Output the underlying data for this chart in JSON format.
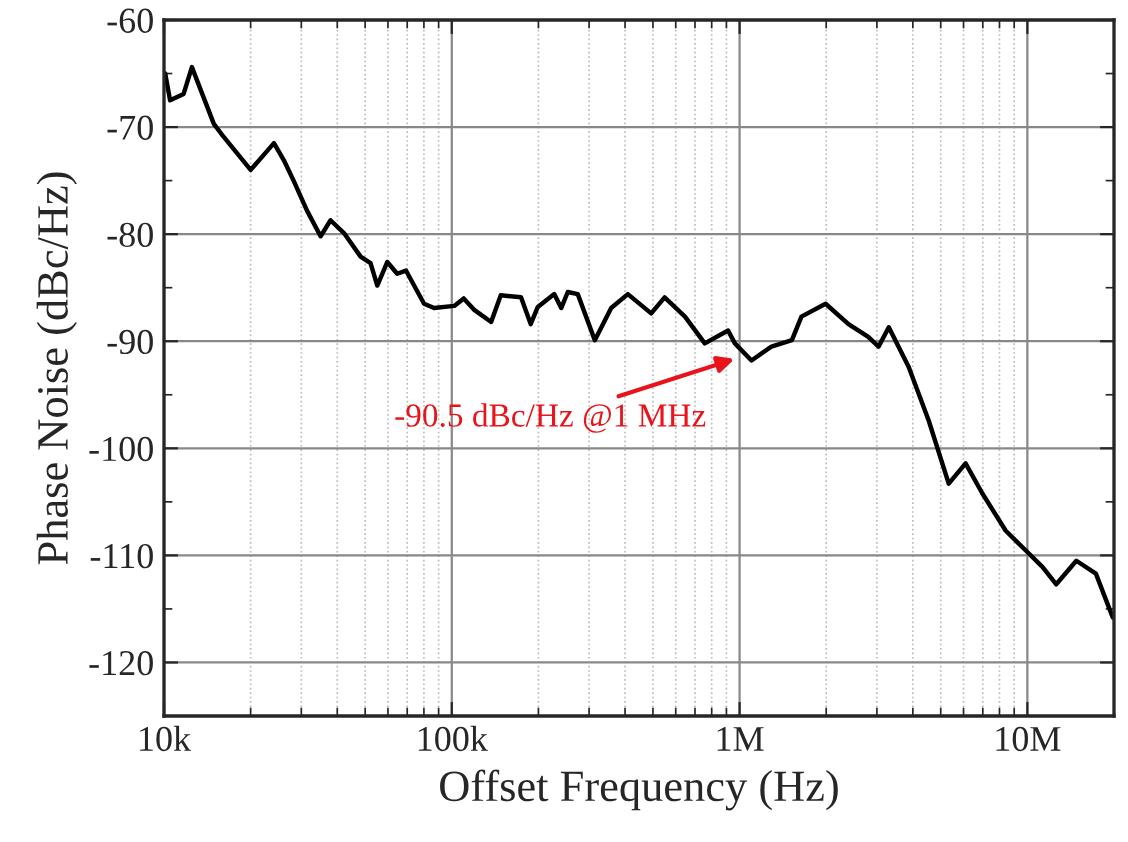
{
  "chart_data": {
    "type": "line",
    "xlabel": "Offset Frequency (Hz)",
    "ylabel": "Phase Noise (dBc/Hz)",
    "log": "x",
    "grid": true,
    "marker": "none",
    "line_style": "solid",
    "xlim": [
      10000,
      20000000
    ],
    "ylim": [
      -125,
      -60
    ],
    "xticks": [
      {
        "value": 10000,
        "label": "10k"
      },
      {
        "value": 100000,
        "label": "100k"
      },
      {
        "value": 1000000,
        "label": "1M"
      },
      {
        "value": 10000000,
        "label": "10M"
      }
    ],
    "yticks": [
      -120,
      -110,
      -100,
      -90,
      -80,
      -70,
      -60
    ],
    "series": [
      {
        "color": "#000000",
        "x": [
          10100,
          10500,
          11700,
          12500,
          14900,
          16100,
          20000,
          24100,
          26100,
          28200,
          31400,
          35000,
          37900,
          42200,
          48200,
          52200,
          55100,
          59700,
          64600,
          69300,
          80100,
          86800,
          102000,
          110000,
          120000,
          137000,
          148000,
          174000,
          188000,
          199000,
          227000,
          240000,
          253000,
          274000,
          314000,
          358000,
          409000,
          493000,
          549000,
          646000,
          757000,
          912000,
          963000,
          1100000,
          1290000,
          1520000,
          1640000,
          1990000,
          2390000,
          2800000,
          3040000,
          3300000,
          3870000,
          4540000,
          5330000,
          6100000,
          6970000,
          8410000,
          10100000,
          11300000,
          12600000,
          14800000,
          17300000,
          19800000
        ],
        "values": [
          -65.0,
          -67.5,
          -66.9,
          -64.4,
          -69.7,
          -70.9,
          -74.0,
          -71.5,
          -73.1,
          -75.0,
          -77.8,
          -80.2,
          -78.7,
          -79.9,
          -82.1,
          -82.7,
          -84.8,
          -82.6,
          -83.7,
          -83.4,
          -86.5,
          -86.9,
          -86.7,
          -86.0,
          -87.1,
          -88.2,
          -85.7,
          -85.9,
          -88.4,
          -86.8,
          -85.6,
          -86.9,
          -85.4,
          -85.6,
          -89.9,
          -86.9,
          -85.6,
          -87.4,
          -85.9,
          -87.7,
          -90.2,
          -89.0,
          -90.2,
          -91.8,
          -90.5,
          -89.9,
          -87.7,
          -86.5,
          -88.4,
          -89.6,
          -90.5,
          -88.7,
          -92.4,
          -97.4,
          -103.3,
          -101.4,
          -104.2,
          -107.7,
          -109.8,
          -111.1,
          -112.7,
          -110.5,
          -111.7,
          -115.8
        ]
      }
    ],
    "annotations": [
      {
        "text": "-90.5 dBc/Hz @1 MHz",
        "x": 1000000,
        "y": -91.5
      }
    ]
  }
}
